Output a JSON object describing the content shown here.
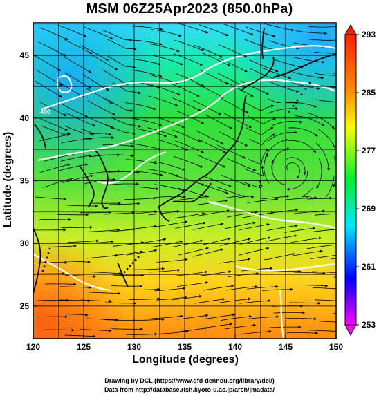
{
  "title": "MSM 06Z25Apr2023 (850.0hPa)",
  "xlabel": "Longitude (degrees)",
  "ylabel": "Latitude  (degrees)",
  "credits": [
    "Drawing by DCL (https://www.gfd-dennou.org/library/dcl/)",
    "Data from http://database.rish.kyoto-u.ac.jp/arch/jmadata/"
  ],
  "map": {
    "lon_range": [
      120,
      150
    ],
    "lat_range": [
      22.4,
      47.6
    ],
    "lon_ticks": [
      "120",
      "125",
      "130",
      "135",
      "140",
      "145",
      "150"
    ],
    "lat_ticks": [
      "25",
      "30",
      "35",
      "40",
      "45"
    ],
    "contour_label": "400"
  },
  "colorbar": {
    "min": 253,
    "max": 293,
    "tick_labels": [
      "293",
      "285",
      "277",
      "269",
      "261",
      "253"
    ],
    "stops": [
      "#ff00ff",
      "#0000ff",
      "#00ffff",
      "#00ff00",
      "#ffff00",
      "#ff8000",
      "#ff0000"
    ]
  }
}
